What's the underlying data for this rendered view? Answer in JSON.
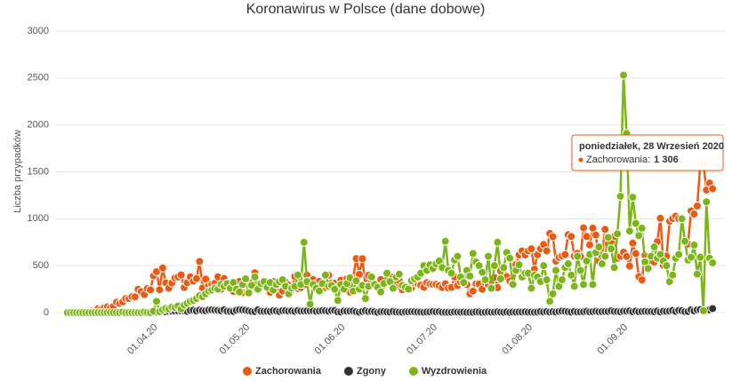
{
  "chart_data": {
    "type": "line",
    "title": "Koronawirus w Polsce (dane dobowe)",
    "y_label": "Liczba przypadków",
    "x": [
      "2020-03-04",
      "2020-03-05",
      "2020-03-06",
      "2020-03-07",
      "2020-03-08",
      "2020-03-09",
      "2020-03-10",
      "2020-03-11",
      "2020-03-12",
      "2020-03-13",
      "2020-03-14",
      "2020-03-15",
      "2020-03-16",
      "2020-03-17",
      "2020-03-18",
      "2020-03-19",
      "2020-03-20",
      "2020-03-21",
      "2020-03-22",
      "2020-03-23",
      "2020-03-24",
      "2020-03-25",
      "2020-03-26",
      "2020-03-27",
      "2020-03-28",
      "2020-03-29",
      "2020-03-30",
      "2020-03-31",
      "2020-04-01",
      "2020-04-02",
      "2020-04-03",
      "2020-04-04",
      "2020-04-05",
      "2020-04-06",
      "2020-04-07",
      "2020-04-08",
      "2020-04-09",
      "2020-04-10",
      "2020-04-11",
      "2020-04-12",
      "2020-04-13",
      "2020-04-14",
      "2020-04-15",
      "2020-04-16",
      "2020-04-17",
      "2020-04-18",
      "2020-04-19",
      "2020-04-20",
      "2020-04-21",
      "2020-04-22",
      "2020-04-23",
      "2020-04-24",
      "2020-04-25",
      "2020-04-26",
      "2020-04-27",
      "2020-04-28",
      "2020-04-29",
      "2020-04-30",
      "2020-05-01",
      "2020-05-02",
      "2020-05-03",
      "2020-05-04",
      "2020-05-05",
      "2020-05-06",
      "2020-05-07",
      "2020-05-08",
      "2020-05-09",
      "2020-05-10",
      "2020-05-11",
      "2020-05-12",
      "2020-05-13",
      "2020-05-14",
      "2020-05-15",
      "2020-05-16",
      "2020-05-17",
      "2020-05-18",
      "2020-05-19",
      "2020-05-20",
      "2020-05-21",
      "2020-05-22",
      "2020-05-23",
      "2020-05-24",
      "2020-05-25",
      "2020-05-26",
      "2020-05-27",
      "2020-05-28",
      "2020-05-29",
      "2020-05-30",
      "2020-05-31",
      "2020-06-01",
      "2020-06-02",
      "2020-06-03",
      "2020-06-04",
      "2020-06-05",
      "2020-06-06",
      "2020-06-07",
      "2020-06-08",
      "2020-06-09",
      "2020-06-10",
      "2020-06-11",
      "2020-06-12",
      "2020-06-13",
      "2020-06-14",
      "2020-06-15",
      "2020-06-16",
      "2020-06-17",
      "2020-06-18",
      "2020-06-19",
      "2020-06-20",
      "2020-06-21",
      "2020-06-22",
      "2020-06-23",
      "2020-06-24",
      "2020-06-25",
      "2020-06-26",
      "2020-06-27",
      "2020-06-28",
      "2020-06-29",
      "2020-06-30",
      "2020-07-01",
      "2020-07-02",
      "2020-07-03",
      "2020-07-04",
      "2020-07-05",
      "2020-07-06",
      "2020-07-07",
      "2020-07-08",
      "2020-07-09",
      "2020-07-10",
      "2020-07-11",
      "2020-07-12",
      "2020-07-13",
      "2020-07-14",
      "2020-07-15",
      "2020-07-16",
      "2020-07-17",
      "2020-07-18",
      "2020-07-19",
      "2020-07-20",
      "2020-07-21",
      "2020-07-22",
      "2020-07-23",
      "2020-07-24",
      "2020-07-25",
      "2020-07-26",
      "2020-07-27",
      "2020-07-28",
      "2020-07-29",
      "2020-07-30",
      "2020-07-31",
      "2020-08-01",
      "2020-08-02",
      "2020-08-03",
      "2020-08-04",
      "2020-08-05",
      "2020-08-06",
      "2020-08-07",
      "2020-08-08",
      "2020-08-09",
      "2020-08-10",
      "2020-08-11",
      "2020-08-12",
      "2020-08-13",
      "2020-08-14",
      "2020-08-15",
      "2020-08-16",
      "2020-08-17",
      "2020-08-18",
      "2020-08-19",
      "2020-08-20",
      "2020-08-21",
      "2020-08-22",
      "2020-08-23",
      "2020-08-24",
      "2020-08-25",
      "2020-08-26",
      "2020-08-27",
      "2020-08-28",
      "2020-08-29",
      "2020-08-30",
      "2020-08-31",
      "2020-09-01",
      "2020-09-02",
      "2020-09-03",
      "2020-09-04",
      "2020-09-05",
      "2020-09-06",
      "2020-09-07",
      "2020-09-08",
      "2020-09-09",
      "2020-09-10",
      "2020-09-11",
      "2020-09-12",
      "2020-09-13",
      "2020-09-14",
      "2020-09-15",
      "2020-09-16",
      "2020-09-17",
      "2020-09-18",
      "2020-09-19",
      "2020-09-20",
      "2020-09-21",
      "2020-09-22",
      "2020-09-23",
      "2020-09-24",
      "2020-09-25",
      "2020-09-26",
      "2020-09-27",
      "2020-09-28",
      "2020-09-29",
      "2020-09-30"
    ],
    "series": [
      {
        "name": "Zachorowania",
        "color": "#ec5a12",
        "values": [
          1,
          0,
          4,
          0,
          6,
          6,
          5,
          11,
          17,
          19,
          43,
          36,
          52,
          61,
          49,
          68,
          111,
          98,
          115,
          152,
          150,
          170,
          168,
          249,
          224,
          193,
          256,
          243,
          392,
          437,
          244,
          475,
          317,
          260,
          316,
          370,
          380,
          401,
          268,
          318,
          380,
          336,
          363,
          545,
          263,
          357,
          285,
          301,
          313,
          381,
          248,
          363,
          314,
          287,
          225,
          254,
          332,
          213,
          348,
          227,
          318,
          425,
          264,
          307,
          301,
          320,
          216,
          330,
          248,
          186,
          230,
          325,
          293,
          245,
          386,
          255,
          266,
          297,
          399,
          340,
          351,
          310,
          333,
          274,
          267,
          398,
          316,
          312,
          268,
          346,
          245,
          360,
          218,
          362,
          576,
          407,
          575,
          282,
          396,
          321,
          300,
          290,
          353,
          294,
          325,
          364,
          380,
          280,
          341,
          244,
          277,
          270,
          265,
          317,
          313,
          291,
          272,
          319,
          306,
          300,
          301,
          286,
          267,
          308,
          262,
          269,
          381,
          289,
          326,
          358,
          299,
          201,
          229,
          306,
          305,
          249,
          318,
          300,
          338,
          374,
          266,
          443,
          480,
          382,
          337,
          315,
          512,
          615,
          657,
          615,
          658,
          680,
          463,
          617,
          680,
          726,
          658,
          843,
          809,
          548,
          587,
          604,
          619,
          830,
          811,
          601,
          632,
          597,
          903,
          811,
          722,
          900,
          827,
          548,
          604,
          887,
          734,
          759,
          813,
          580,
          600,
          644,
          599,
          496,
          740,
          629,
          383,
          349,
          610,
          597,
          600,
          539,
          756,
          1005,
          504,
          602,
          974,
          1002,
          1027,
          1002,
          1001,
          757,
          731,
          1084,
          1050,
          1136,
          1587,
          1584,
          1306,
          1380,
          1320
        ]
      },
      {
        "name": "Zgony",
        "color": "#333333",
        "values": [
          0,
          0,
          0,
          0,
          0,
          0,
          0,
          0,
          0,
          1,
          0,
          1,
          1,
          0,
          0,
          2,
          1,
          0,
          1,
          2,
          3,
          2,
          3,
          4,
          3,
          5,
          6,
          8,
          6,
          5,
          13,
          13,
          9,
          15,
          15,
          16,
          19,
          19,
          18,
          13,
          22,
          26,
          19,
          27,
          23,
          20,
          28,
          30,
          26,
          24,
          20,
          30,
          15,
          13,
          12,
          25,
          32,
          29,
          25,
          19,
          12,
          12,
          29,
          15,
          14,
          15,
          13,
          20,
          18,
          12,
          21,
          21,
          16,
          18,
          13,
          22,
          16,
          17,
          19,
          19,
          20,
          14,
          17,
          21,
          19,
          15,
          22,
          22,
          8,
          7,
          16,
          15,
          16,
          17,
          10,
          4,
          12,
          19,
          12,
          14,
          10,
          2,
          9,
          11,
          8,
          6,
          13,
          7,
          5,
          4,
          8,
          8,
          11,
          10,
          7,
          6,
          4,
          7,
          7,
          12,
          8,
          10,
          4,
          3,
          3,
          4,
          7,
          5,
          4,
          6,
          2,
          3,
          3,
          7,
          7,
          2,
          4,
          7,
          4,
          5,
          8,
          5,
          4,
          7,
          2,
          6,
          5,
          7,
          6,
          8,
          5,
          6,
          4,
          6,
          11,
          7,
          11,
          6,
          9,
          6,
          12,
          16,
          14,
          9,
          6,
          13,
          7,
          7,
          9,
          14,
          8,
          10,
          14,
          10,
          11,
          12,
          12,
          19,
          12,
          12,
          8,
          15,
          15,
          18,
          9,
          17,
          9,
          12,
          14,
          12,
          12,
          9,
          16,
          7,
          15,
          13,
          17,
          22,
          12,
          24,
          20,
          11,
          12,
          30,
          19,
          30,
          32,
          20,
          23,
          30,
          43
        ]
      },
      {
        "name": "Wyzdrowienia",
        "color": "#7cb518",
        "values": [
          0,
          0,
          0,
          0,
          0,
          0,
          0,
          0,
          0,
          0,
          0,
          0,
          0,
          1,
          0,
          0,
          0,
          0,
          6,
          0,
          0,
          0,
          0,
          0,
          0,
          6,
          0,
          0,
          15,
          120,
          10,
          30,
          45,
          40,
          60,
          55,
          70,
          40,
          80,
          100,
          120,
          130,
          150,
          180,
          170,
          200,
          230,
          240,
          260,
          250,
          300,
          280,
          310,
          260,
          320,
          250,
          220,
          300,
          360,
          210,
          290,
          380,
          250,
          310,
          330,
          270,
          320,
          240,
          300,
          330,
          350,
          280,
          200,
          260,
          280,
          400,
          300,
          750,
          330,
          90,
          300,
          260,
          230,
          310,
          400,
          280,
          290,
          250,
          130,
          300,
          250,
          310,
          370,
          230,
          340,
          250,
          290,
          150,
          280,
          380,
          300,
          270,
          220,
          310,
          420,
          330,
          260,
          380,
          410,
          290,
          270,
          250,
          340,
          360,
          380,
          420,
          500,
          450,
          510,
          470,
          520,
          550,
          480,
          760,
          450,
          420,
          560,
          600,
          380,
          320,
          450,
          390,
          630,
          540,
          500,
          430,
          350,
          600,
          260,
          500,
          750,
          360,
          480,
          640,
          580,
          300,
          450,
          510,
          380,
          420,
          420,
          260,
          400,
          380,
          330,
          500,
          350,
          120,
          200,
          450,
          280,
          350,
          480,
          520,
          400,
          280,
          600,
          450,
          300,
          550,
          620,
          300,
          640,
          700,
          520,
          600,
          800,
          680,
          480,
          840,
          1240,
          2530,
          1910,
          870,
          1230,
          950,
          820,
          900,
          540,
          470,
          600,
          700,
          580,
          620,
          550,
          500,
          330,
          400,
          580,
          620,
          1000,
          760,
          560,
          590,
          720,
          410,
          590,
          20,
          1180,
          580,
          530
        ]
      }
    ],
    "xlim": [
      "2020-02-29",
      "2020-10-04"
    ],
    "xticks": [
      {
        "value": "2020-04-01",
        "label": "01.04.20"
      },
      {
        "value": "2020-05-01",
        "label": "01.05.20"
      },
      {
        "value": "2020-06-01",
        "label": "01.06.20"
      },
      {
        "value": "2020-07-01",
        "label": "01.07.20"
      },
      {
        "value": "2020-08-01",
        "label": "01.08.20"
      },
      {
        "value": "2020-09-01",
        "label": "01.09.20"
      }
    ],
    "ylim": [
      0,
      3000
    ],
    "yticks": [
      0,
      500,
      1000,
      1500,
      2000,
      2500,
      3000
    ],
    "grid": true,
    "legend": "bottom",
    "tooltip": {
      "date": "poniedziałek, 28 Wrzesień 2020",
      "label": "Zachorowania:",
      "x": "2020-09-28",
      "value": 1306,
      "value_label": "1 306"
    }
  }
}
